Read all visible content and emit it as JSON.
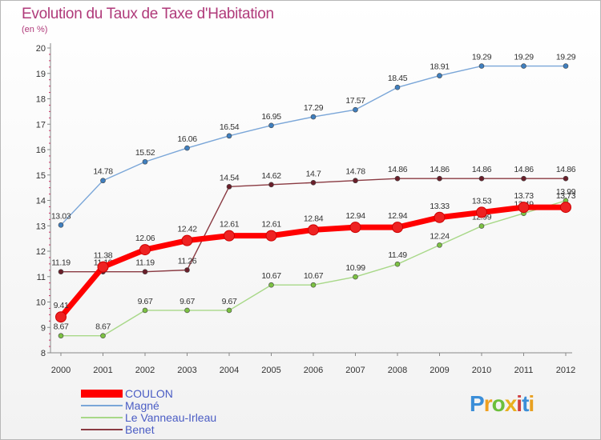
{
  "chart_data": {
    "type": "line",
    "title": "Evolution du Taux de Taxe d'Habitation",
    "unit_label": "(en %)",
    "x": [
      "2000",
      "2001",
      "2002",
      "2003",
      "2004",
      "2005",
      "2006",
      "2007",
      "2008",
      "2009",
      "2010",
      "2011",
      "2012"
    ],
    "ylim": [
      8,
      20
    ],
    "yticks": [
      "8",
      "9",
      "10",
      "11",
      "12",
      "13",
      "14",
      "15",
      "16",
      "17",
      "18",
      "19",
      "20"
    ],
    "grid": false,
    "legend_position": "bottom-left",
    "series": [
      {
        "name": "Magné",
        "color": "#7aa6d8",
        "marker": "#3f7fbf",
        "width": 1.4,
        "values": [
          13.03,
          14.78,
          15.52,
          16.06,
          16.54,
          16.95,
          17.29,
          17.57,
          18.45,
          18.91,
          19.29,
          19.29,
          19.29
        ],
        "labels": [
          "13.03",
          "14.78",
          "15.52",
          "16.06",
          "16.54",
          "16.95",
          "17.29",
          "17.57",
          "18.45",
          "18.91",
          "19.29",
          "19.29",
          "19.29"
        ]
      },
      {
        "name": "Le Vanneau-Irleau",
        "color": "#a8d888",
        "marker": "#7cc143",
        "width": 1.4,
        "values": [
          8.67,
          8.67,
          9.67,
          9.67,
          9.67,
          10.67,
          10.67,
          10.99,
          11.49,
          12.24,
          12.99,
          13.49,
          13.99
        ],
        "labels": [
          "8.67",
          "8.67",
          "9.67",
          "9.67",
          "9.67",
          "10.67",
          "10.67",
          "10.99",
          "11.49",
          "12.24",
          "12.99",
          "13.49",
          "13.99"
        ]
      },
      {
        "name": "Benet",
        "color": "#8a3a42",
        "marker": "#6a1f2a",
        "width": 1.4,
        "values": [
          11.19,
          11.19,
          11.19,
          11.26,
          14.54,
          14.62,
          14.7,
          14.78,
          14.86,
          14.86,
          14.86,
          14.86,
          14.86
        ],
        "labels": [
          "11.19",
          "11.19",
          "11.19",
          "11.26",
          "14.54",
          "14.62",
          "14.7",
          "14.78",
          "14.86",
          "14.86",
          "14.86",
          "14.86",
          "14.86"
        ]
      },
      {
        "name": "COULON",
        "color": "#ff0000",
        "marker": "#ee2222",
        "width": 7,
        "values": [
          9.41,
          11.38,
          12.06,
          12.42,
          12.61,
          12.61,
          12.84,
          12.94,
          12.94,
          13.33,
          13.53,
          13.73,
          13.73
        ],
        "labels": [
          "9.41",
          "11.38",
          "12.06",
          "12.42",
          "12.61",
          "12.61",
          "12.84",
          "12.94",
          "12.94",
          "13.33",
          "13.53",
          "13.73",
          "13.73"
        ]
      }
    ],
    "legend": [
      {
        "name": "COULON",
        "color": "#ff0000",
        "thickness": 10
      },
      {
        "name": "Magné",
        "color": "#7aa6d8",
        "thickness": 2
      },
      {
        "name": "Le Vanneau-Irleau",
        "color": "#a8d888",
        "thickness": 2
      },
      {
        "name": "Benet",
        "color": "#8a3a42",
        "thickness": 2
      }
    ]
  },
  "brand": {
    "letters": [
      "P",
      "r",
      "o",
      "x",
      "i",
      "t",
      "i"
    ],
    "colors": [
      "#3b8ed8",
      "#f0a020",
      "#6cbf3c",
      "#e8b020",
      "#d04040",
      "#3b8ed8",
      "#e8a020"
    ]
  }
}
